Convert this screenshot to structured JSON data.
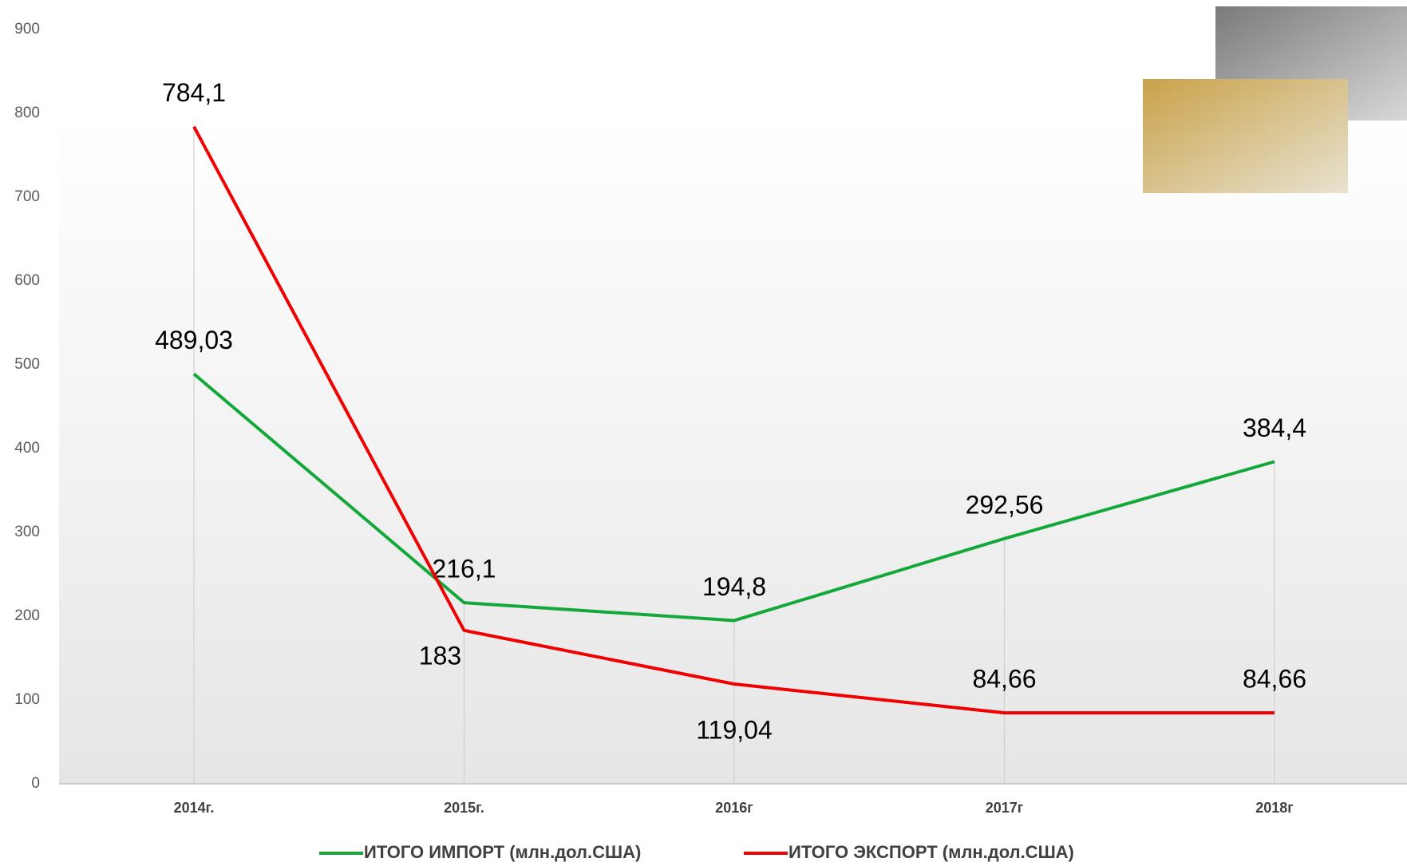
{
  "chart_data": {
    "type": "line",
    "categories": [
      "2014г.",
      "2015г.",
      "2016г",
      "2017г",
      "2018г"
    ],
    "series": [
      {
        "name": "ИТОГО ИМПОРТ (млн.дол.США)",
        "color": "#14a83b",
        "values": [
          489.03,
          216.1,
          194.8,
          292.56,
          384.4
        ],
        "value_labels": [
          "489,03",
          "216,1",
          "194,8",
          "292,56",
          "384,4"
        ]
      },
      {
        "name": "ИТОГО ЭКСПОРТ (млн.дол.США)",
        "color": "#f00000",
        "values": [
          784.1,
          183,
          119.04,
          84.66,
          84.66
        ],
        "value_labels": [
          "784,1",
          "183",
          "119,04",
          "84,66",
          "84,66"
        ]
      }
    ],
    "ylim": [
      0,
      900
    ],
    "yticks": [
      0,
      100,
      200,
      300,
      400,
      500,
      600,
      700,
      800,
      900
    ],
    "grid": false,
    "legend": "bottom"
  }
}
